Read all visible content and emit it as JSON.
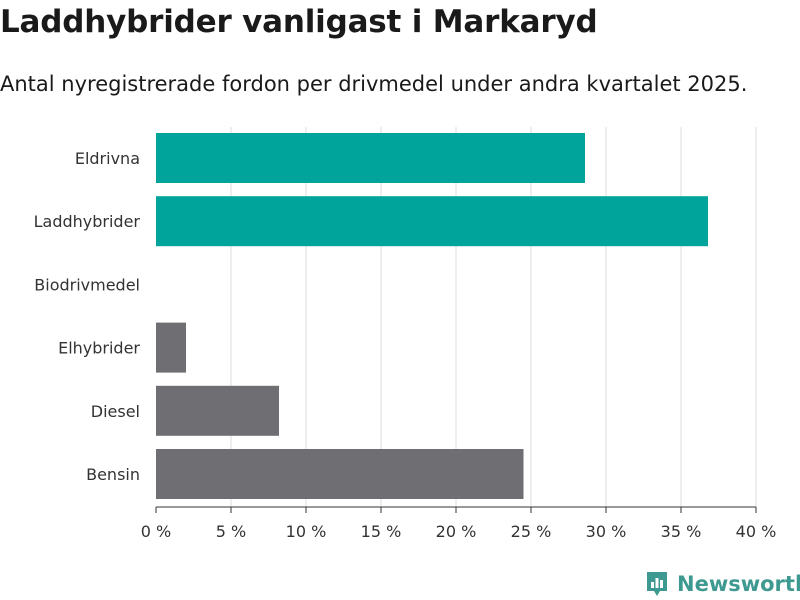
{
  "title": "Laddhybrider vanligast i Markaryd",
  "subtitle": "Antal nyregistrerade fordon per drivmedel under andra kvartalet 2025.",
  "brand": {
    "name": "Newsworthy",
    "icon": "bar-chart-pin-icon",
    "color": "#3e9a91"
  },
  "colors": {
    "highlight": "#00a49b",
    "default": "#6f6e73",
    "grid": "#dddddd",
    "axis": "#333333"
  },
  "chart_data": {
    "type": "bar",
    "orientation": "horizontal",
    "categories": [
      "Eldrivna",
      "Laddhybrider",
      "Biodrivmedel",
      "Elhybrider",
      "Diesel",
      "Bensin"
    ],
    "values": [
      28.6,
      36.8,
      0,
      2.0,
      8.2,
      24.5
    ],
    "highlighted": [
      true,
      true,
      false,
      false,
      false,
      false
    ],
    "xlim": [
      0,
      40
    ],
    "xticks": [
      0,
      5,
      10,
      15,
      20,
      25,
      30,
      35,
      40
    ],
    "tick_suffix": " %",
    "grid": true
  }
}
